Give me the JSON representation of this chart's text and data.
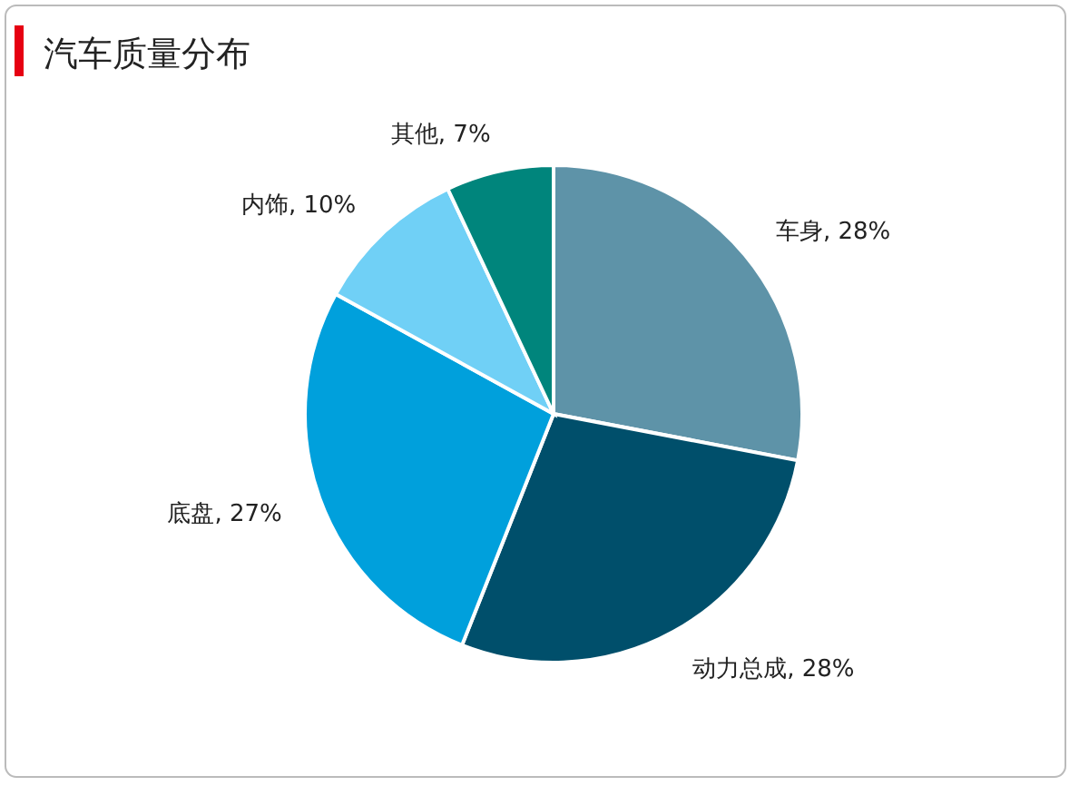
{
  "chart_data": {
    "type": "pie",
    "title": "汽车质量分布",
    "categories": [
      "车身",
      "动力总成",
      "底盘",
      "内饰",
      "其他"
    ],
    "values": [
      28,
      28,
      27,
      10,
      7
    ],
    "value_labels": [
      "28%",
      "28%",
      "27%",
      "10%",
      "7%"
    ],
    "colors": [
      "#5e93a8",
      "#004f6b",
      "#00a0dc",
      "#70d0f6",
      "#00857c"
    ]
  }
}
